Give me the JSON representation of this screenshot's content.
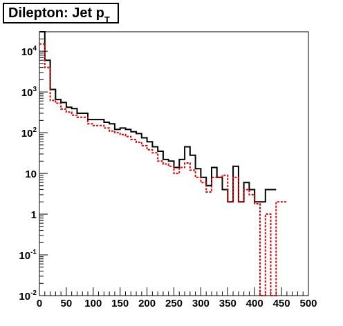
{
  "chart_data": {
    "type": "line",
    "title_main": "Dilepton: Jet p",
    "title_sub": "T",
    "xlim": [
      0,
      500
    ],
    "ylim": [
      0.01,
      30000
    ],
    "yscale": "log",
    "bin_width": 10,
    "x_ticks": [
      "0",
      "50",
      "100",
      "150",
      "200",
      "250",
      "300",
      "350",
      "400",
      "450",
      "500"
    ],
    "y_ticks": [
      {
        "value": 10000,
        "base": "10",
        "exp": "4"
      },
      {
        "value": 1000,
        "base": "10",
        "exp": "3"
      },
      {
        "value": 100,
        "base": "10",
        "exp": "2"
      },
      {
        "value": 10,
        "base": "10",
        "exp": ""
      },
      {
        "value": 1,
        "base": "1",
        "exp": ""
      },
      {
        "value": 0.1,
        "base": "10",
        "exp": "-1"
      },
      {
        "value": 0.01,
        "base": "10",
        "exp": "-2"
      }
    ],
    "series": [
      {
        "color": "#000000",
        "style": "solid",
        "values": [
          30000,
          6000,
          1150,
          650,
          550,
          420,
          390,
          300,
          300,
          210,
          210,
          210,
          180,
          165,
          120,
          130,
          120,
          105,
          95,
          75,
          60,
          45,
          35,
          22,
          20,
          14,
          22,
          45,
          28,
          13,
          8,
          5,
          14,
          8,
          4,
          2,
          15,
          2,
          6,
          4,
          2,
          2,
          4,
          4
        ]
      },
      {
        "color": "#e00000",
        "style": "dotted",
        "values": [
          15000,
          4000,
          620,
          530,
          380,
          320,
          270,
          240,
          240,
          165,
          150,
          150,
          130,
          110,
          100,
          90,
          80,
          68,
          58,
          48,
          38,
          32,
          20,
          17,
          15,
          10,
          14,
          18,
          12,
          8,
          6,
          3.5,
          8,
          8,
          9,
          2,
          8,
          2,
          4,
          3,
          1.8,
          0.005,
          1,
          0.005,
          2,
          2
        ]
      }
    ]
  }
}
